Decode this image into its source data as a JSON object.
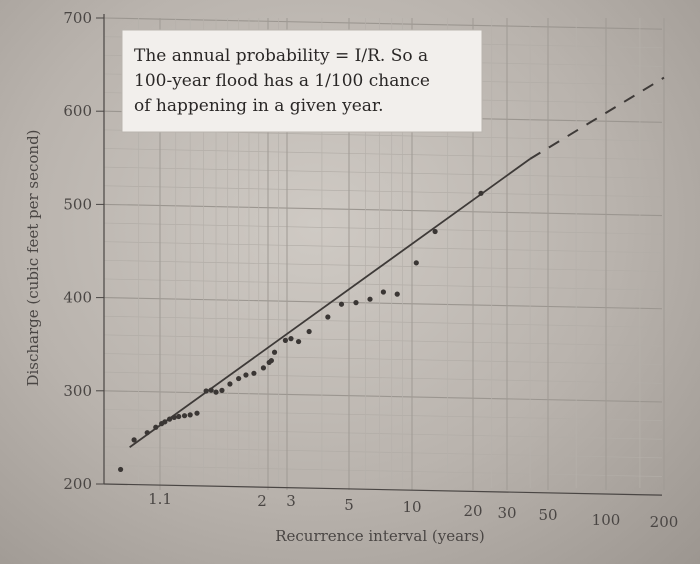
{
  "chart_data": {
    "type": "scatter",
    "title": "",
    "xlabel": "Recurrence interval (years)",
    "ylabel": "Discharge (cubic feet per second)",
    "xscale": "probability",
    "x_ticks": [
      {
        "value": 1.1,
        "label": "1.1"
      },
      {
        "value": 2,
        "label": "2"
      },
      {
        "value": 3,
        "label": "3"
      },
      {
        "value": 5,
        "label": "5"
      },
      {
        "value": 10,
        "label": "10"
      },
      {
        "value": 20,
        "label": "20"
      },
      {
        "value": 30,
        "label": "30"
      },
      {
        "value": 50,
        "label": "50"
      },
      {
        "value": 100,
        "label": "100"
      },
      {
        "value": 200,
        "label": "200"
      }
    ],
    "y_ticks": [
      200,
      300,
      400,
      500,
      600,
      700
    ],
    "ylim": [
      200,
      700
    ],
    "grid": true,
    "annotation": {
      "lines": [
        "The annual probability = I/R. So a",
        "100-year flood has a 1/100 chance",
        "of happening in a given year."
      ]
    },
    "points": [
      {
        "x": 1.01,
        "y": 216
      },
      {
        "x": 1.04,
        "y": 248
      },
      {
        "x": 1.07,
        "y": 256
      },
      {
        "x": 1.09,
        "y": 262
      },
      {
        "x": 1.11,
        "y": 266
      },
      {
        "x": 1.13,
        "y": 268
      },
      {
        "x": 1.16,
        "y": 271
      },
      {
        "x": 1.19,
        "y": 273
      },
      {
        "x": 1.22,
        "y": 274
      },
      {
        "x": 1.26,
        "y": 275
      },
      {
        "x": 1.3,
        "y": 276
      },
      {
        "x": 1.35,
        "y": 278
      },
      {
        "x": 1.42,
        "y": 302
      },
      {
        "x": 1.46,
        "y": 303
      },
      {
        "x": 1.5,
        "y": 301
      },
      {
        "x": 1.55,
        "y": 303
      },
      {
        "x": 1.62,
        "y": 310
      },
      {
        "x": 1.7,
        "y": 316
      },
      {
        "x": 1.77,
        "y": 320
      },
      {
        "x": 1.85,
        "y": 322
      },
      {
        "x": 1.95,
        "y": 328
      },
      {
        "x": 2.05,
        "y": 334
      },
      {
        "x": 2.15,
        "y": 336
      },
      {
        "x": 2.3,
        "y": 345
      },
      {
        "x": 2.9,
        "y": 358
      },
      {
        "x": 3.1,
        "y": 360
      },
      {
        "x": 3.3,
        "y": 357
      },
      {
        "x": 3.6,
        "y": 368
      },
      {
        "x": 4.2,
        "y": 384
      },
      {
        "x": 4.7,
        "y": 398
      },
      {
        "x": 5.4,
        "y": 400
      },
      {
        "x": 6.3,
        "y": 404
      },
      {
        "x": 7.3,
        "y": 412
      },
      {
        "x": 8.5,
        "y": 410
      },
      {
        "x": 10.5,
        "y": 444
      },
      {
        "x": 13,
        "y": 478
      },
      {
        "x": 22,
        "y": 520
      }
    ],
    "fit_line": {
      "solid": [
        {
          "x": 1.03,
          "y": 240
        },
        {
          "x": 40,
          "y": 558
        }
      ],
      "dashed": [
        {
          "x": 40,
          "y": 558
        },
        {
          "x": 200,
          "y": 648
        }
      ]
    }
  }
}
